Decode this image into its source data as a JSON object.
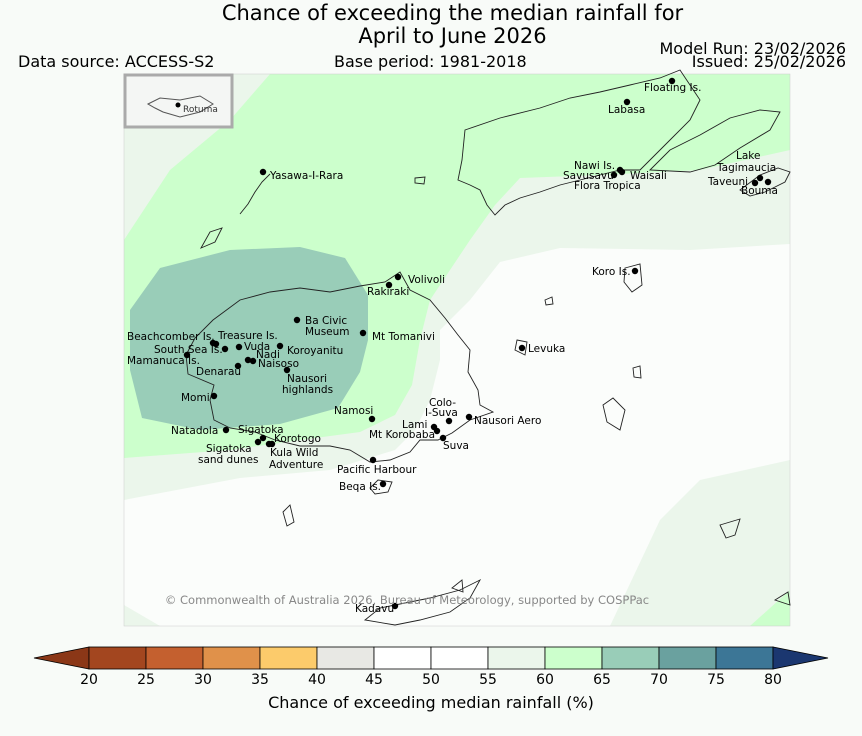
{
  "title_line1": "Chance of exceeding the median rainfall for",
  "title_line2": "April to June 2026",
  "data_source": "Data source: ACCESS-S2",
  "base_period": "Base period: 1981-2018",
  "model_run": "Model Run: 23/02/2026",
  "issued": "Issued: 25/02/2026",
  "inset_label": "Rotuma",
  "copyright": "© Commonwealth of Australia 2026, Bureau of Meteorology, supported by COSPPac",
  "colorbar": {
    "label": "Chance of exceeding median rainfall (%)",
    "ticks": [
      "20",
      "25",
      "30",
      "35",
      "40",
      "45",
      "50",
      "55",
      "60",
      "65",
      "70",
      "75",
      "80"
    ],
    "colors": [
      "#a3461f",
      "#c4602f",
      "#e0914a",
      "#fccb6b",
      "#e8e8e4",
      "#ffffff",
      "#ffffff",
      "#ebf6eb",
      "#ccffcc",
      "#99cdb8",
      "#6aa19f",
      "#3c7696",
      "#24467a"
    ],
    "under_color": "#8b3717",
    "over_color": "#1b3770"
  },
  "places": [
    "Floating Is.",
    "Labasa",
    "Nawi Is.",
    "Savusavu",
    "Waisali",
    "Flora Tropica",
    "Lake",
    "Tagimaucia",
    "Taveuni",
    "Bouma",
    "Yasawa-I-Rara",
    "Koro Is.",
    "Volivoli",
    "Rakiraki",
    "Ba Civic",
    "Museum",
    "Mt Tomanivi",
    "Beachcomber Is.",
    "Treasure Is.",
    "South Sea Is.",
    "Vuda",
    "Nadi",
    "Koroyanitu",
    "Mamanuca Is.",
    "Naisoso",
    "Denarau",
    "Nausori",
    "highlands",
    "Levuka",
    "Momi",
    "Colo-",
    "I-Suva",
    "Namosi",
    "Nausori Aero",
    "Natadola",
    "Sigatoka",
    "Lami",
    "Mt Korobaba",
    "Korotogo",
    "Suva",
    "Sigatoka",
    "sand dunes",
    "Kula Wild",
    "Adventure",
    "Pacific Harbour",
    "Beqa Is.",
    "Kadavu"
  ]
}
